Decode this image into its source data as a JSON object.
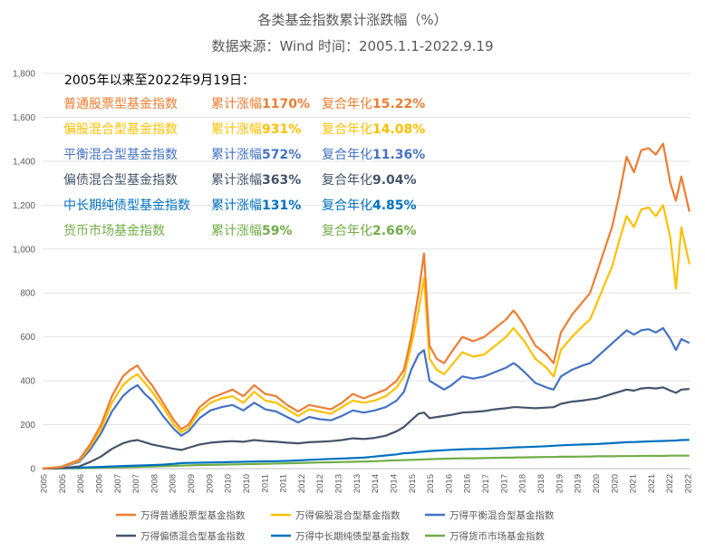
{
  "chart_data": {
    "type": "line",
    "title": "各类基金指数累计涨跌幅（%）",
    "subtitle": "数据来源：Wind 时间：2005.1.1-2022.9.19",
    "ylim": [
      0,
      1800
    ],
    "yticks": [
      "0",
      "200",
      "400",
      "600",
      "800",
      "1,000",
      "1,200",
      "1,400",
      "1,600",
      "1,800"
    ],
    "x": [
      2005.0,
      2005.5,
      2006.0,
      2006.3,
      2006.6,
      2006.9,
      2007.2,
      2007.4,
      2007.6,
      2007.8,
      2008.0,
      2008.3,
      2008.6,
      2008.8,
      2009.0,
      2009.3,
      2009.6,
      2009.9,
      2010.2,
      2010.5,
      2010.8,
      2011.1,
      2011.4,
      2011.7,
      2012.0,
      2012.3,
      2012.6,
      2012.9,
      2013.2,
      2013.5,
      2013.8,
      2014.1,
      2014.4,
      2014.7,
      2014.9,
      2015.1,
      2015.3,
      2015.45,
      2015.6,
      2015.8,
      2016.0,
      2016.2,
      2016.5,
      2016.8,
      2017.1,
      2017.4,
      2017.7,
      2017.9,
      2018.0,
      2018.2,
      2018.5,
      2018.8,
      2019.0,
      2019.2,
      2019.5,
      2019.8,
      2020.0,
      2020.2,
      2020.4,
      2020.6,
      2020.8,
      2021.0,
      2021.2,
      2021.4,
      2021.6,
      2021.8,
      2022.0,
      2022.2,
      2022.35,
      2022.5,
      2022.72
    ],
    "series": [
      {
        "name": "万得普通股票型基金指数",
        "color": "#ED7D31",
        "values": [
          0,
          8,
          40,
          110,
          200,
          330,
          420,
          450,
          470,
          420,
          380,
          300,
          220,
          180,
          200,
          280,
          320,
          340,
          360,
          330,
          380,
          340,
          330,
          290,
          260,
          290,
          280,
          270,
          300,
          340,
          320,
          340,
          360,
          400,
          450,
          600,
          800,
          980,
          560,
          500,
          480,
          530,
          600,
          580,
          600,
          640,
          680,
          720,
          700,
          650,
          560,
          520,
          480,
          620,
          700,
          760,
          800,
          900,
          1000,
          1100,
          1250,
          1420,
          1350,
          1450,
          1460,
          1430,
          1480,
          1300,
          1220,
          1330,
          1170
        ]
      },
      {
        "name": "万得偏股混合型基金指数",
        "color": "#FFC000",
        "values": [
          0,
          7,
          35,
          100,
          180,
          300,
          380,
          410,
          430,
          390,
          350,
          280,
          200,
          165,
          185,
          260,
          300,
          320,
          330,
          300,
          350,
          310,
          300,
          270,
          240,
          270,
          260,
          250,
          280,
          310,
          300,
          310,
          330,
          370,
          420,
          560,
          720,
          870,
          500,
          450,
          430,
          470,
          530,
          510,
          520,
          560,
          600,
          640,
          620,
          580,
          500,
          460,
          420,
          540,
          600,
          650,
          680,
          760,
          840,
          920,
          1040,
          1150,
          1100,
          1180,
          1190,
          1150,
          1200,
          1050,
          820,
          1100,
          931
        ]
      },
      {
        "name": "万得平衡混合型基金指数",
        "color": "#4472C4",
        "values": [
          0,
          6,
          30,
          85,
          160,
          260,
          330,
          360,
          380,
          340,
          310,
          240,
          180,
          150,
          170,
          230,
          265,
          280,
          290,
          265,
          300,
          270,
          260,
          235,
          210,
          235,
          225,
          220,
          240,
          265,
          255,
          265,
          280,
          310,
          350,
          450,
          520,
          540,
          400,
          380,
          360,
          380,
          420,
          410,
          420,
          440,
          460,
          480,
          470,
          440,
          390,
          370,
          360,
          420,
          450,
          470,
          480,
          510,
          540,
          570,
          600,
          630,
          610,
          630,
          635,
          620,
          640,
          590,
          540,
          590,
          572
        ]
      },
      {
        "name": "万得偏债混合型基金指数",
        "color": "#44546A",
        "values": [
          0,
          2,
          10,
          30,
          55,
          90,
          115,
          125,
          130,
          120,
          110,
          100,
          90,
          85,
          95,
          110,
          118,
          122,
          125,
          122,
          130,
          125,
          122,
          118,
          115,
          120,
          122,
          125,
          130,
          138,
          135,
          140,
          150,
          170,
          190,
          220,
          250,
          255,
          230,
          235,
          240,
          245,
          255,
          258,
          262,
          270,
          275,
          280,
          280,
          278,
          275,
          278,
          280,
          295,
          305,
          310,
          315,
          320,
          330,
          340,
          350,
          360,
          355,
          365,
          368,
          365,
          370,
          355,
          345,
          360,
          363
        ]
      },
      {
        "name": "万得中长期纯债型基金指数",
        "color": "#0070C0",
        "values": [
          0,
          2,
          4,
          6,
          8,
          10,
          12,
          13,
          14,
          15,
          16,
          18,
          22,
          25,
          26,
          27,
          28,
          29,
          30,
          31,
          32,
          33,
          34,
          35,
          37,
          40,
          42,
          44,
          46,
          48,
          50,
          55,
          60,
          65,
          70,
          72,
          76,
          78,
          80,
          82,
          84,
          86,
          88,
          89,
          90,
          92,
          94,
          96,
          97,
          98,
          100,
          102,
          104,
          106,
          108,
          110,
          111,
          112,
          114,
          116,
          118,
          120,
          121,
          122,
          124,
          125,
          126,
          127,
          128,
          130,
          131
        ]
      },
      {
        "name": "万得货币市场基金指数",
        "color": "#70AD47",
        "values": [
          0,
          1,
          2,
          3,
          4,
          5,
          6,
          7,
          8,
          9,
          10,
          11,
          13,
          14,
          15,
          16,
          17,
          18,
          19,
          20,
          21,
          22,
          23,
          24,
          25,
          27,
          28,
          29,
          30,
          31,
          32,
          34,
          36,
          38,
          39,
          40,
          41,
          42,
          43,
          44,
          45,
          46,
          47,
          47,
          48,
          49,
          50,
          50,
          51,
          51,
          52,
          53,
          53,
          54,
          54,
          55,
          55,
          56,
          56,
          56,
          57,
          57,
          57,
          58,
          58,
          58,
          58,
          59,
          59,
          59,
          59
        ]
      }
    ],
    "xticks": [
      "2005",
      "2005",
      "2006",
      "2006",
      "2007",
      "2007",
      "2008",
      "2008",
      "2009",
      "2009",
      "2010",
      "2010",
      "2011",
      "2011",
      "2012",
      "2012",
      "2013",
      "2013",
      "2014",
      "2014",
      "2015",
      "2015",
      "2016",
      "2016",
      "2017",
      "2017",
      "2018",
      "2018",
      "2019",
      "2019",
      "2020",
      "2020",
      "2021",
      "2021",
      "2022",
      "2022"
    ],
    "annotation": {
      "heading": "2005年以来至2022年9月19日：",
      "rows": [
        {
          "name": "普通股票型基金指数",
          "cum_label": "累计涨幅",
          "cum_value": "1170%",
          "ann_label": "复合年化",
          "ann_value": "15.22%",
          "color": "#ED7D31"
        },
        {
          "name": "偏股混合型基金指数",
          "cum_label": "累计涨幅",
          "cum_value": "931%",
          "ann_label": "复合年化",
          "ann_value": "14.08%",
          "color": "#FFC000"
        },
        {
          "name": "平衡混合型基金指数",
          "cum_label": "累计涨幅",
          "cum_value": "572%",
          "ann_label": "复合年化",
          "ann_value": "11.36%",
          "color": "#4472C4"
        },
        {
          "name": "偏债混合型基金指数",
          "cum_label": "累计涨幅",
          "cum_value": "363%",
          "ann_label": "复合年化",
          "ann_value": "9.04%",
          "color": "#44546A"
        },
        {
          "name": "中长期纯债型基金指数",
          "cum_label": "累计涨幅",
          "cum_value": "131%",
          "ann_label": "复合年化",
          "ann_value": "4.85%",
          "color": "#0070C0"
        },
        {
          "name": "货币市场基金指数",
          "cum_label": "累计涨幅",
          "cum_value": "59%",
          "ann_label": "复合年化",
          "ann_value": "2.66%",
          "color": "#70AD47"
        }
      ]
    },
    "legend_position": "bottom",
    "grid": true
  }
}
